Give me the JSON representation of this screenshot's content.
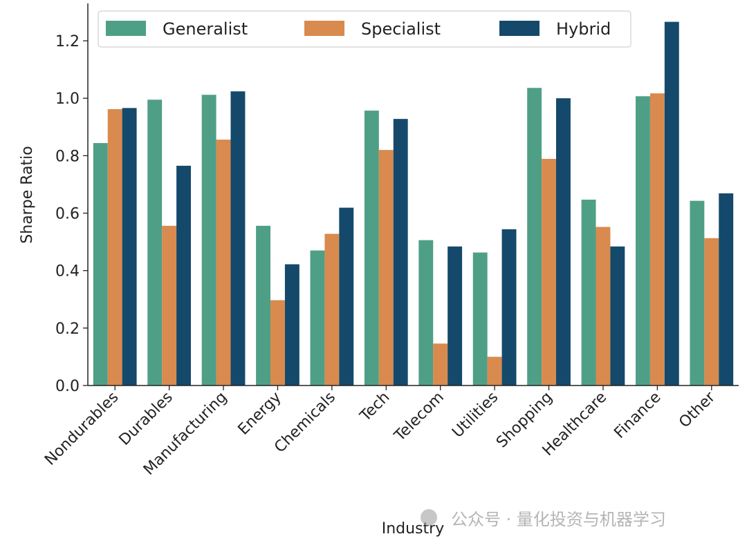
{
  "chart_data": {
    "type": "bar",
    "xlabel": "Industry",
    "ylabel": "Sharpe Ratio",
    "ylim": [
      0,
      1.33
    ],
    "yticks": [
      "0.0",
      "0.2",
      "0.4",
      "0.6",
      "0.8",
      "1.0",
      "1.2"
    ],
    "grid": false,
    "legend_position": "top",
    "categories": [
      "Nondurables",
      "Durables",
      "Manufacturing",
      "Energy",
      "Chemicals",
      "Tech",
      "Telecom",
      "Utilities",
      "Shopping",
      "Healthcare",
      "Finance",
      "Other"
    ],
    "series": [
      {
        "name": "Generalist",
        "color": "#4f9f86",
        "values": [
          0.844,
          0.995,
          1.012,
          0.556,
          0.47,
          0.957,
          0.506,
          0.463,
          1.036,
          0.647,
          1.007,
          0.643
        ]
      },
      {
        "name": "Specialist",
        "color": "#d98a4e",
        "values": [
          0.962,
          0.556,
          0.856,
          0.297,
          0.528,
          0.82,
          0.146,
          0.1,
          0.789,
          0.552,
          1.017,
          0.513
        ]
      },
      {
        "name": "Hybrid",
        "color": "#14496b",
        "values": [
          0.966,
          0.765,
          1.024,
          0.422,
          0.619,
          0.928,
          0.484,
          0.544,
          1.0,
          0.484,
          1.266,
          0.669
        ]
      }
    ]
  },
  "watermark": "公众号 · 量化投资与机器学习"
}
